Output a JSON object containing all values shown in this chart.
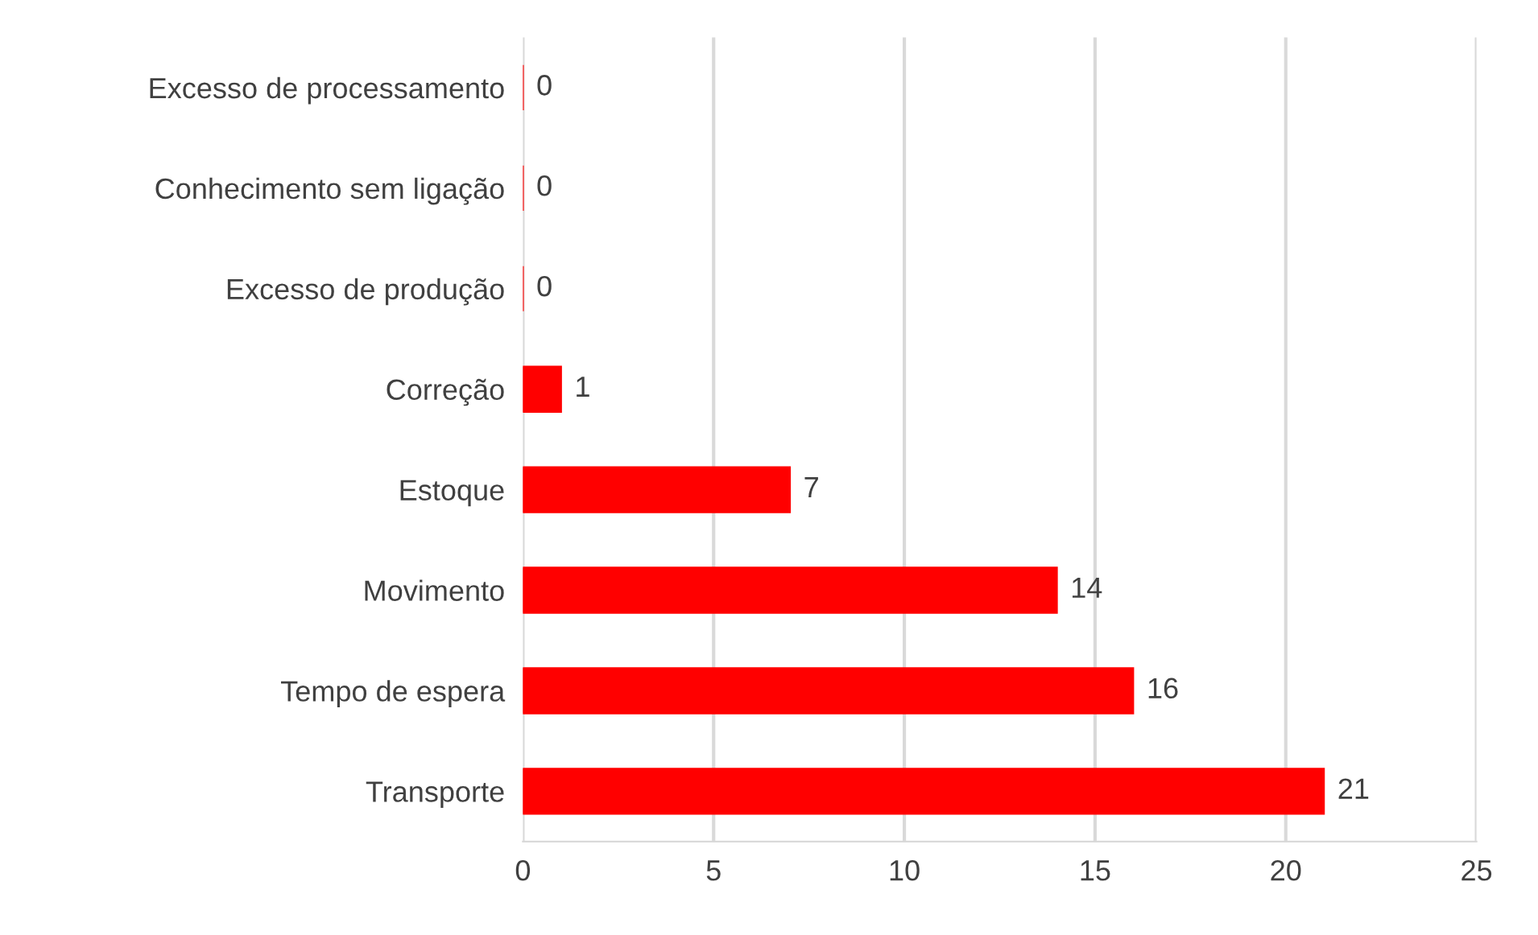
{
  "chart_data": {
    "type": "bar",
    "orientation": "horizontal",
    "categories": [
      "Excesso de processamento",
      "Conhecimento sem ligação",
      "Excesso de produção",
      "Correção",
      "Estoque",
      "Movimento",
      "Tempo de espera",
      "Transporte"
    ],
    "values": [
      0,
      0,
      0,
      1,
      7,
      14,
      16,
      21
    ],
    "color": "#ff0000",
    "xlim": [
      0,
      25
    ],
    "xticks": [
      0,
      5,
      10,
      15,
      20,
      25
    ],
    "grid": "x",
    "data_labels": true
  }
}
